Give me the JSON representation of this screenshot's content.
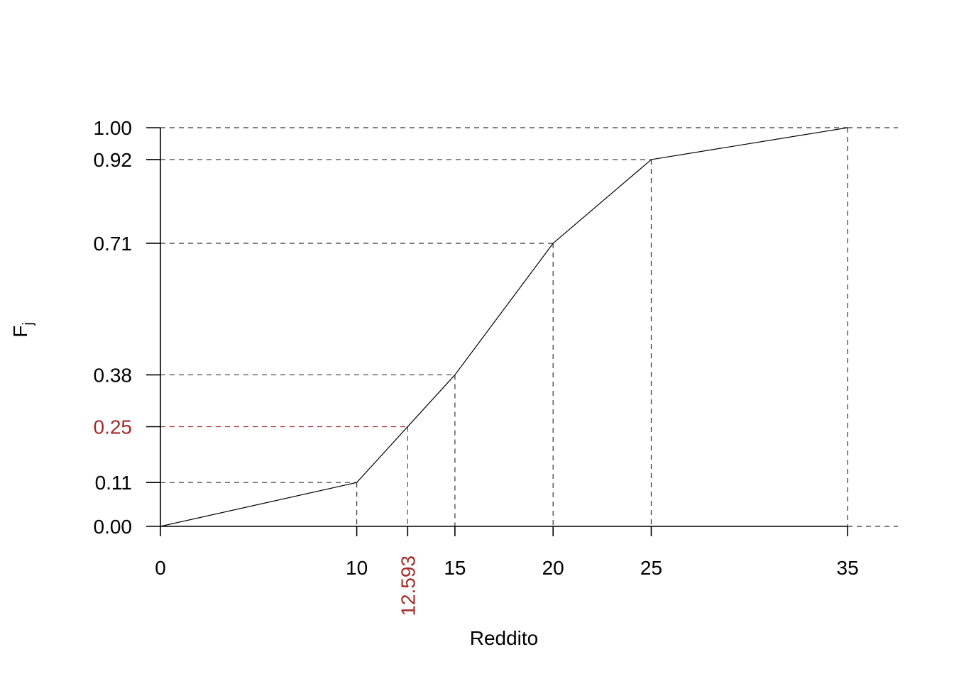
{
  "chart_data": {
    "type": "line",
    "title": "",
    "xlabel": "Reddito",
    "ylabel_main": "F",
    "ylabel_sub": "j",
    "x": [
      0,
      10,
      15,
      20,
      25,
      35
    ],
    "y": [
      0.0,
      0.11,
      0.38,
      0.71,
      0.92,
      1.0
    ],
    "xlim": [
      0,
      37.5
    ],
    "ylim": [
      0,
      1
    ],
    "x_ticks": [
      {
        "value": 0,
        "label": "0"
      },
      {
        "value": 10,
        "label": "10"
      },
      {
        "value": 15,
        "label": "15"
      },
      {
        "value": 20,
        "label": "20"
      },
      {
        "value": 25,
        "label": "25"
      },
      {
        "value": 35,
        "label": "35"
      }
    ],
    "y_ticks": [
      {
        "value": 0.0,
        "label": "0.00"
      },
      {
        "value": 0.11,
        "label": "0.11"
      },
      {
        "value": 0.38,
        "label": "0.38"
      },
      {
        "value": 0.71,
        "label": "0.71"
      },
      {
        "value": 0.92,
        "label": "0.92"
      },
      {
        "value": 1.0,
        "label": "1.00"
      }
    ],
    "highlight": {
      "x": 12.593,
      "y": 0.25,
      "x_label": "12.593",
      "y_label": "0.25",
      "color": "#A52A2A"
    },
    "line_color": "#000000",
    "guide_color": "#333333",
    "grid": false
  }
}
